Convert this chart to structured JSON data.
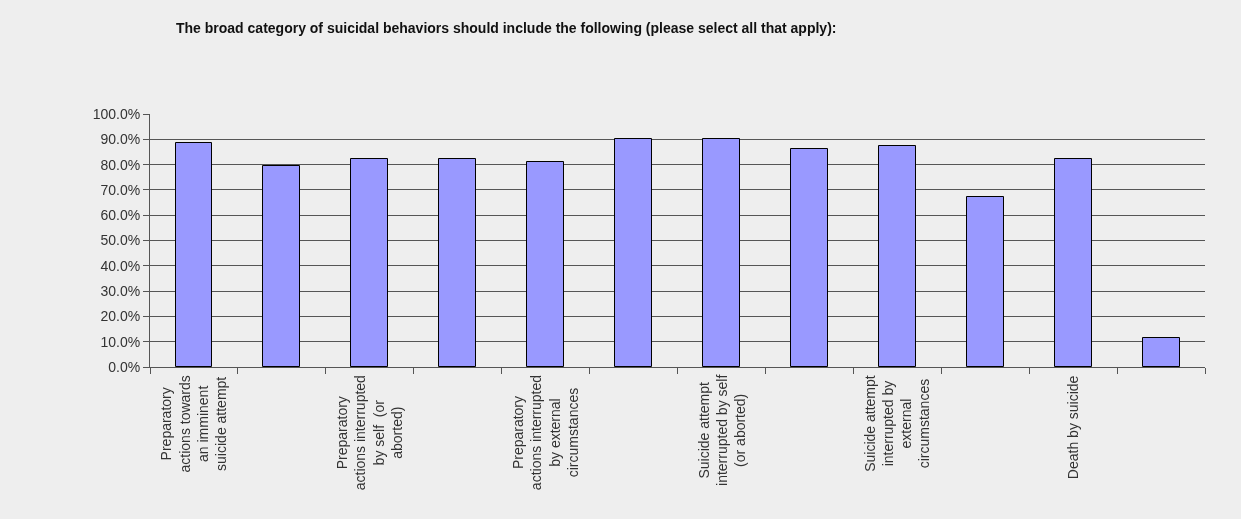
{
  "chart_data": {
    "type": "bar",
    "title": "The broad category of suicidal behaviors should include the following (please select all that apply):",
    "categories": [
      "Preparatory\nactions towards\nan imminent\nsuicide attempt",
      null,
      "Preparatory\nactions interrupted\nby self  (or\naborted)",
      null,
      "Preparatory\nactions interrupted\nby external\ncircumstances",
      null,
      "Suicide attempt\ninterrupted by self\n(or aborted)",
      null,
      "Suicide attempt\ninterrupted by\nexternal\ncircumstances",
      null,
      "Death by suicide",
      null
    ],
    "values": [
      88.7,
      79.6,
      82.4,
      82.4,
      80.9,
      90.0,
      90.0,
      86.1,
      87.3,
      67.2,
      82.2,
      11.5
    ],
    "color": "#9999ff",
    "ylim": [
      0,
      100
    ],
    "yticks": [
      {
        "value": 0,
        "label": "0.0%"
      },
      {
        "value": 10,
        "label": "10.0%"
      },
      {
        "value": 20,
        "label": "20.0%"
      },
      {
        "value": 30,
        "label": "30.0%"
      },
      {
        "value": 40,
        "label": "40.0%"
      },
      {
        "value": 50,
        "label": "50.0%"
      },
      {
        "value": 60,
        "label": "60.0%"
      },
      {
        "value": 70,
        "label": "70.0%"
      },
      {
        "value": 80,
        "label": "80.0%"
      },
      {
        "value": 90,
        "label": "90.0%"
      },
      {
        "value": 100,
        "label": "100.0%"
      }
    ],
    "grid": "y"
  }
}
